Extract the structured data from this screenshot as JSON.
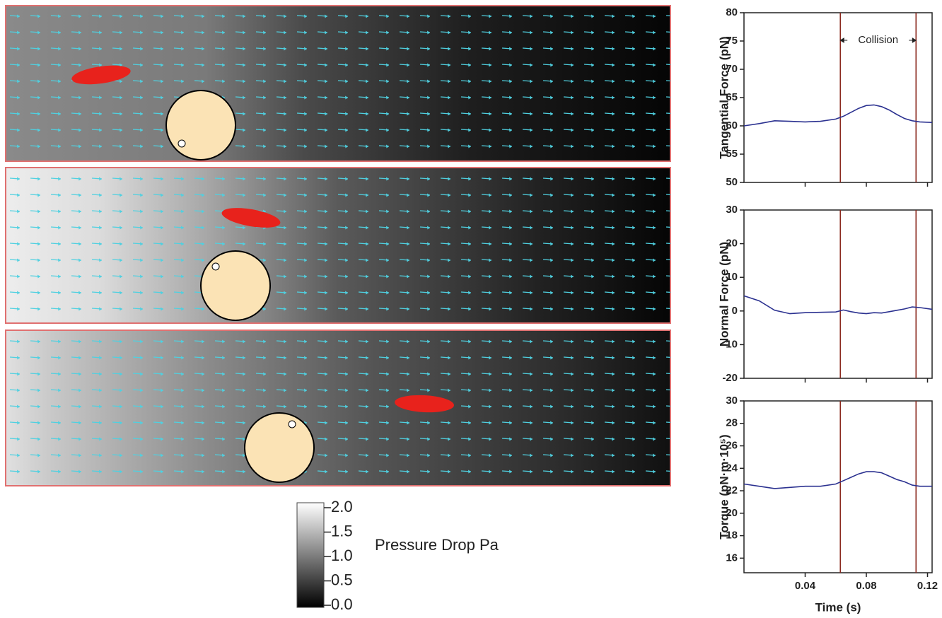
{
  "chart_data": [
    {
      "type": "line",
      "ylabel": "Tangential Force (pN)",
      "annotation": "Collision",
      "x": [
        0,
        0.01,
        0.02,
        0.03,
        0.04,
        0.05,
        0.06,
        0.065,
        0.07,
        0.075,
        0.08,
        0.085,
        0.09,
        0.095,
        0.1,
        0.105,
        0.11,
        0.115,
        0.123
      ],
      "values": [
        60,
        60.4,
        60.9,
        60.8,
        60.7,
        60.8,
        61.2,
        61.7,
        62.4,
        63.1,
        63.6,
        63.7,
        63.4,
        62.8,
        62,
        61.3,
        60.9,
        60.7,
        60.6
      ],
      "color": "#2b3190",
      "vlines": [
        0.063,
        0.1125
      ],
      "vline_color": "#8b2a1f",
      "xlim": [
        0,
        0.123
      ],
      "xticks": [
        0.04,
        0.08,
        0.12
      ],
      "xtick_labels": false,
      "ylim": [
        50,
        80
      ],
      "yticks": [
        50,
        55,
        60,
        65,
        70,
        75,
        80
      ]
    },
    {
      "type": "line",
      "ylabel": "Normal Force (pN)",
      "x": [
        0,
        0.01,
        0.02,
        0.03,
        0.04,
        0.05,
        0.06,
        0.065,
        0.07,
        0.075,
        0.08,
        0.085,
        0.09,
        0.095,
        0.1,
        0.105,
        0.11,
        0.115,
        0.123
      ],
      "values": [
        4.5,
        3,
        0.2,
        -0.8,
        -0.5,
        -0.4,
        -0.3,
        0.3,
        -0.2,
        -0.6,
        -0.8,
        -0.5,
        -0.6,
        -0.2,
        0.2,
        0.6,
        1.2,
        1,
        0.5
      ],
      "color": "#2b3190",
      "vlines": [
        0.063,
        0.1125
      ],
      "vline_color": "#8b2a1f",
      "xlim": [
        0,
        0.123
      ],
      "xticks": [
        0.04,
        0.08,
        0.12
      ],
      "xtick_labels": false,
      "ylim": [
        -20,
        30
      ],
      "yticks": [
        -20,
        -10,
        0,
        10,
        20,
        30
      ]
    },
    {
      "type": "line",
      "ylabel": "Torque (pN·m·10⁵)",
      "xlabel": "Time (s)",
      "x": [
        0,
        0.01,
        0.02,
        0.03,
        0.04,
        0.05,
        0.06,
        0.065,
        0.07,
        0.075,
        0.08,
        0.085,
        0.09,
        0.095,
        0.1,
        0.105,
        0.11,
        0.115,
        0.123
      ],
      "values": [
        22.6,
        22.4,
        22.2,
        22.3,
        22.4,
        22.4,
        22.6,
        22.9,
        23.2,
        23.5,
        23.7,
        23.7,
        23.6,
        23.3,
        23,
        22.8,
        22.5,
        22.4,
        22.4
      ],
      "color": "#2b3190",
      "vlines": [
        0.063,
        0.1125
      ],
      "vline_color": "#8b2a1f",
      "xlim": [
        0,
        0.123
      ],
      "xticks": [
        0.04,
        0.08,
        0.12
      ],
      "xtick_labels": true,
      "ylim": [
        14.7,
        30
      ],
      "yticks": [
        16,
        18,
        20,
        22,
        24,
        26,
        28,
        30
      ]
    }
  ],
  "colorbar": {
    "label": "Pressure Drop Pa",
    "lim": [
      0,
      2
    ],
    "ticks": [
      {
        "value": 0,
        "label": "0.0"
      },
      {
        "value": 0.5,
        "label": "0.5"
      },
      {
        "value": 1,
        "label": "1.0"
      },
      {
        "value": 1.5,
        "label": "1.5"
      },
      {
        "value": 2,
        "label": "2.0"
      }
    ]
  }
}
